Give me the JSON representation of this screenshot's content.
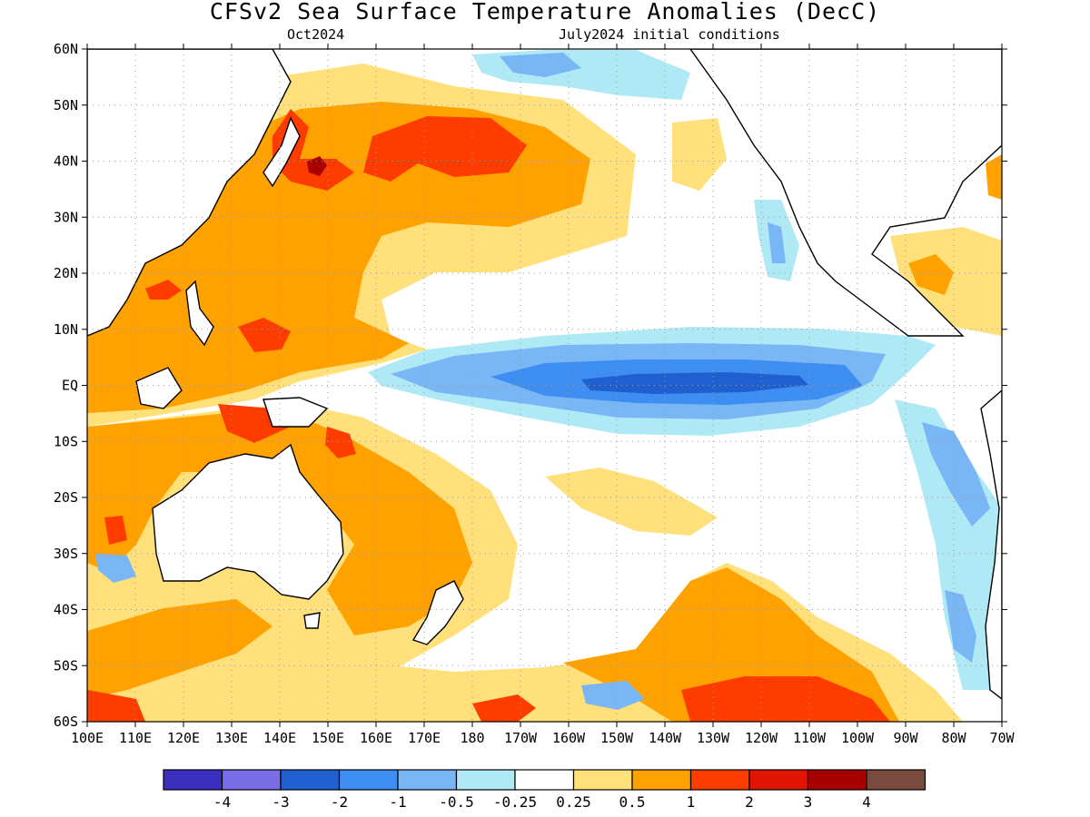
{
  "title": "CFSv2 Sea Surface Temperature Anomalies (DecC)",
  "subtitle_left": "Oct2024",
  "subtitle_right": "July2024 initial conditions",
  "map": {
    "lat_labels": [
      "60N",
      "50N",
      "40N",
      "30N",
      "20N",
      "10N",
      "EQ",
      "10S",
      "20S",
      "30S",
      "40S",
      "50S",
      "60S"
    ],
    "lon_labels": [
      "100E",
      "110E",
      "120E",
      "130E",
      "140E",
      "150E",
      "160E",
      "170E",
      "180",
      "170W",
      "160W",
      "150W",
      "140W",
      "130W",
      "120W",
      "110W",
      "100W",
      "90W",
      "80W",
      "70W"
    ],
    "lon_range": [
      "100E",
      "70W"
    ],
    "lat_range": [
      "60S",
      "60N"
    ],
    "grid": "dotted"
  },
  "colorbar": {
    "colors": [
      "#3a2fbf",
      "#7a6ee8",
      "#1f5fd0",
      "#3d8ef0",
      "#78b6f5",
      "#aee9f5",
      "#ffffff",
      "#ffe07a",
      "#ffa200",
      "#ff3c00",
      "#e01400",
      "#a80000",
      "#7a4a3f"
    ],
    "labels": [
      "-4",
      "-3",
      "-2",
      "-1",
      "-0.5",
      "-0.25",
      "0.25",
      "0.5",
      "1",
      "2",
      "3",
      "4"
    ]
  }
}
